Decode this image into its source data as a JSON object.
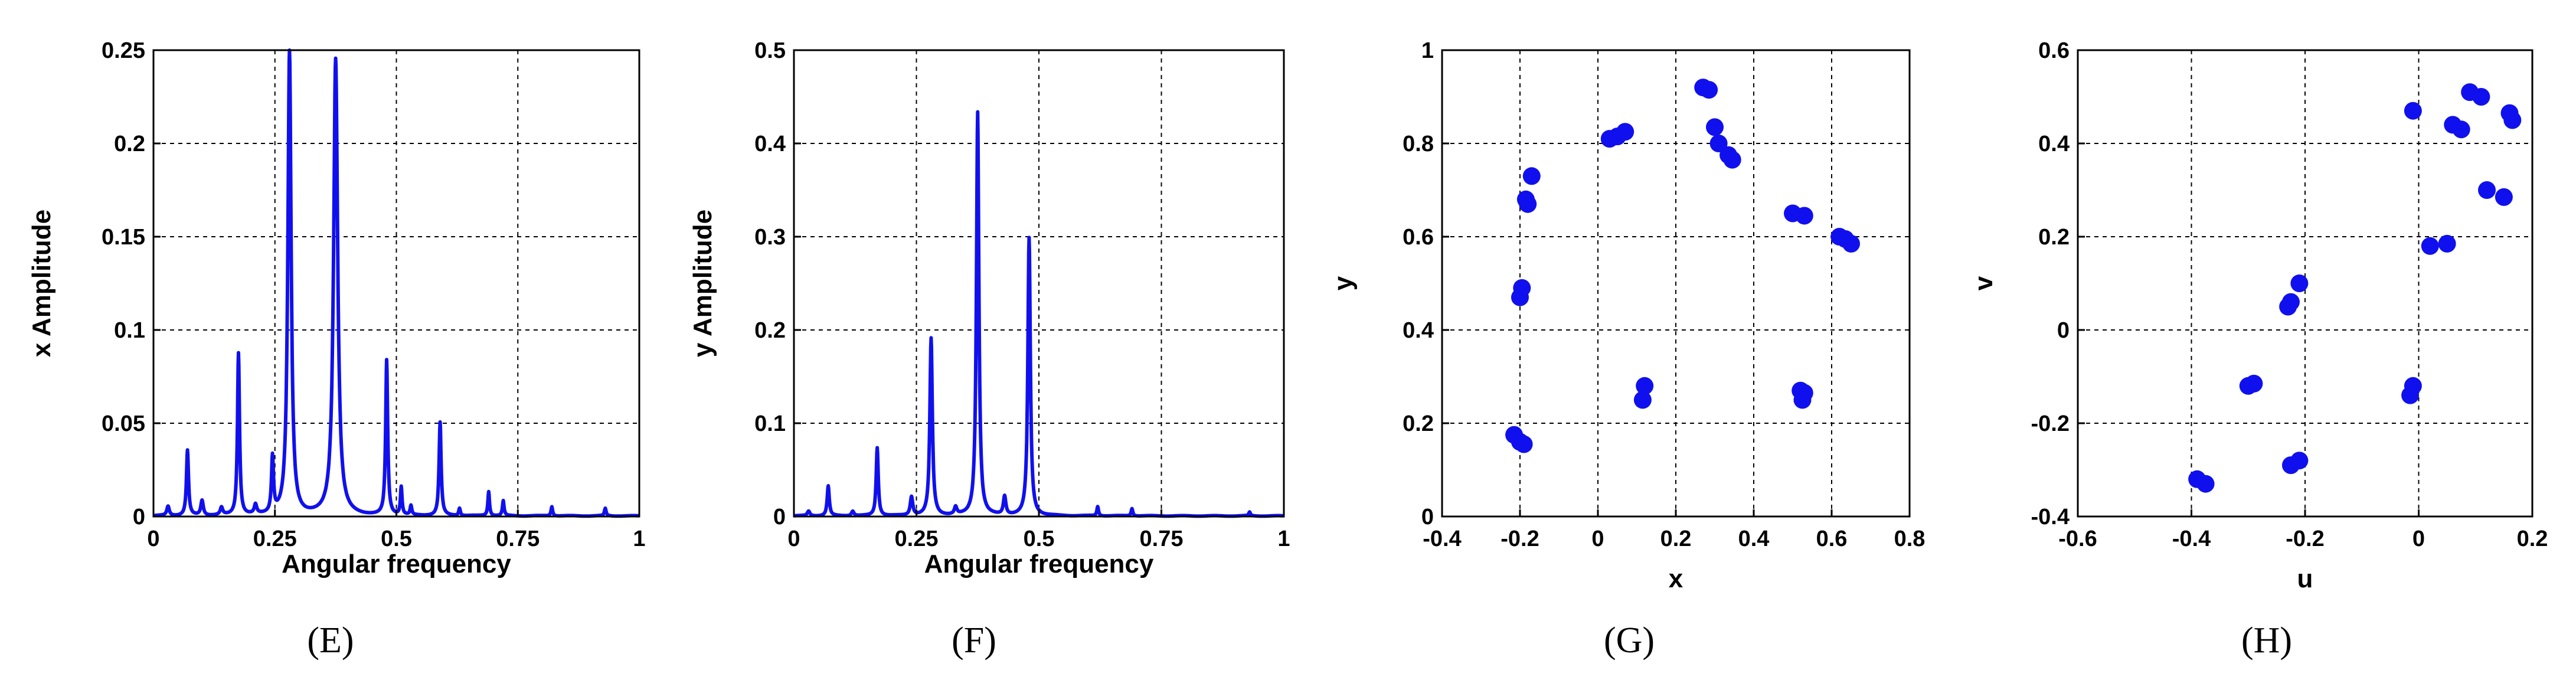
{
  "colors": {
    "series": "#1010ee",
    "axis": "#000000",
    "background": "#ffffff"
  },
  "chart_data": [
    {
      "panel": "(E)",
      "type": "line",
      "title": "",
      "xlabel": "Angular frequency",
      "ylabel": "x Amplitude",
      "xlim": [
        0,
        1
      ],
      "ylim": [
        0,
        0.25
      ],
      "xticks": [
        0,
        0.25,
        0.5,
        0.75,
        1
      ],
      "xtick_labels": [
        "0",
        "0.25",
        "0.5",
        "0.75",
        "1"
      ],
      "yticks": [
        0,
        0.05,
        0.1,
        0.15,
        0.2,
        0.25
      ],
      "ytick_labels": [
        "0",
        "0.05",
        "0.1",
        "0.15",
        "0.2",
        "0.25"
      ],
      "grid": true,
      "peaks": [
        {
          "x": 0.03,
          "y": 0.005,
          "w": 0.003
        },
        {
          "x": 0.07,
          "y": 0.035,
          "w": 0.0025
        },
        {
          "x": 0.1,
          "y": 0.008,
          "w": 0.003
        },
        {
          "x": 0.14,
          "y": 0.004,
          "w": 0.003
        },
        {
          "x": 0.175,
          "y": 0.087,
          "w": 0.0025
        },
        {
          "x": 0.21,
          "y": 0.005,
          "w": 0.003
        },
        {
          "x": 0.245,
          "y": 0.03,
          "w": 0.0025
        },
        {
          "x": 0.28,
          "y": 0.25,
          "w": 0.004
        },
        {
          "x": 0.375,
          "y": 0.245,
          "w": 0.005
        },
        {
          "x": 0.48,
          "y": 0.083,
          "w": 0.0025
        },
        {
          "x": 0.51,
          "y": 0.015,
          "w": 0.002
        },
        {
          "x": 0.53,
          "y": 0.005,
          "w": 0.002
        },
        {
          "x": 0.59,
          "y": 0.05,
          "w": 0.0025
        },
        {
          "x": 0.63,
          "y": 0.004,
          "w": 0.002
        },
        {
          "x": 0.69,
          "y": 0.013,
          "w": 0.002
        },
        {
          "x": 0.72,
          "y": 0.008,
          "w": 0.002
        },
        {
          "x": 0.82,
          "y": 0.005,
          "w": 0.002
        },
        {
          "x": 0.93,
          "y": 0.004,
          "w": 0.002
        }
      ]
    },
    {
      "panel": "(F)",
      "type": "line",
      "title": "",
      "xlabel": "Angular frequency",
      "ylabel": "y Amplitude",
      "xlim": [
        0,
        1
      ],
      "ylim": [
        0,
        0.5
      ],
      "xticks": [
        0,
        0.25,
        0.5,
        0.75,
        1
      ],
      "xtick_labels": [
        "0",
        "0.25",
        "0.5",
        "0.75",
        "1"
      ],
      "yticks": [
        0,
        0.1,
        0.2,
        0.3,
        0.4,
        0.5
      ],
      "ytick_labels": [
        "0",
        "0.1",
        "0.2",
        "0.3",
        "0.4",
        "0.5"
      ],
      "grid": true,
      "peaks": [
        {
          "x": 0.03,
          "y": 0.005,
          "w": 0.003
        },
        {
          "x": 0.07,
          "y": 0.032,
          "w": 0.0025
        },
        {
          "x": 0.12,
          "y": 0.005,
          "w": 0.003
        },
        {
          "x": 0.17,
          "y": 0.073,
          "w": 0.0025
        },
        {
          "x": 0.24,
          "y": 0.02,
          "w": 0.003
        },
        {
          "x": 0.28,
          "y": 0.19,
          "w": 0.003
        },
        {
          "x": 0.33,
          "y": 0.008,
          "w": 0.003
        },
        {
          "x": 0.375,
          "y": 0.433,
          "w": 0.003
        },
        {
          "x": 0.43,
          "y": 0.02,
          "w": 0.003
        },
        {
          "x": 0.48,
          "y": 0.298,
          "w": 0.003
        },
        {
          "x": 0.62,
          "y": 0.01,
          "w": 0.002
        },
        {
          "x": 0.69,
          "y": 0.008,
          "w": 0.002
        },
        {
          "x": 0.93,
          "y": 0.004,
          "w": 0.002
        }
      ]
    },
    {
      "panel": "(G)",
      "type": "scatter",
      "title": "",
      "xlabel": "x",
      "ylabel": "y",
      "xlim": [
        -0.4,
        0.8
      ],
      "ylim": [
        0,
        1
      ],
      "xticks": [
        -0.4,
        -0.2,
        0,
        0.2,
        0.4,
        0.6,
        0.8
      ],
      "xtick_labels": [
        "-0.4",
        "-0.2",
        "0",
        "0.2",
        "0.4",
        "0.6",
        "0.8"
      ],
      "yticks": [
        0,
        0.2,
        0.4,
        0.6,
        0.8,
        1
      ],
      "ytick_labels": [
        "0",
        "0.2",
        "0.4",
        "0.6",
        "0.8",
        "1"
      ],
      "grid": true,
      "points": [
        [
          -0.17,
          0.73
        ],
        [
          -0.18,
          0.67
        ],
        [
          -0.185,
          0.68
        ],
        [
          -0.195,
          0.49
        ],
        [
          -0.2,
          0.47
        ],
        [
          -0.215,
          0.175
        ],
        [
          -0.2,
          0.16
        ],
        [
          -0.19,
          0.155
        ],
        [
          0.03,
          0.81
        ],
        [
          0.05,
          0.815
        ],
        [
          0.07,
          0.825
        ],
        [
          0.27,
          0.92
        ],
        [
          0.285,
          0.915
        ],
        [
          0.3,
          0.835
        ],
        [
          0.31,
          0.8
        ],
        [
          0.335,
          0.775
        ],
        [
          0.345,
          0.765
        ],
        [
          0.5,
          0.65
        ],
        [
          0.53,
          0.645
        ],
        [
          0.62,
          0.6
        ],
        [
          0.635,
          0.595
        ],
        [
          0.65,
          0.585
        ],
        [
          0.12,
          0.28
        ],
        [
          0.115,
          0.25
        ],
        [
          0.52,
          0.27
        ],
        [
          0.525,
          0.25
        ],
        [
          0.53,
          0.265
        ]
      ]
    },
    {
      "panel": "(H)",
      "type": "scatter",
      "title": "",
      "xlabel": "u",
      "ylabel": "v",
      "xlim": [
        -0.6,
        0.2
      ],
      "ylim": [
        -0.4,
        0.6
      ],
      "xticks": [
        -0.6,
        -0.4,
        -0.2,
        0,
        0.2
      ],
      "xtick_labels": [
        "-0.6",
        "-0.4",
        "-0.2",
        "0",
        "0.2"
      ],
      "yticks": [
        -0.4,
        -0.2,
        0,
        0.2,
        0.4,
        0.6
      ],
      "ytick_labels": [
        "-0.4",
        "-0.2",
        "0",
        "0.2",
        "0.4",
        "0.6"
      ],
      "grid": true,
      "points": [
        [
          -0.01,
          0.47
        ],
        [
          0.06,
          0.44
        ],
        [
          0.075,
          0.43
        ],
        [
          0.09,
          0.51
        ],
        [
          0.11,
          0.5
        ],
        [
          0.16,
          0.465
        ],
        [
          0.165,
          0.45
        ],
        [
          0.12,
          0.3
        ],
        [
          0.15,
          0.285
        ],
        [
          0.02,
          0.18
        ],
        [
          0.05,
          0.185
        ],
        [
          -0.21,
          0.1
        ],
        [
          -0.225,
          0.06
        ],
        [
          -0.23,
          0.05
        ],
        [
          -0.3,
          -0.12
        ],
        [
          -0.29,
          -0.115
        ],
        [
          -0.01,
          -0.12
        ],
        [
          -0.015,
          -0.14
        ],
        [
          -0.225,
          -0.29
        ],
        [
          -0.21,
          -0.28
        ],
        [
          -0.39,
          -0.32
        ],
        [
          -0.375,
          -0.33
        ]
      ]
    }
  ]
}
